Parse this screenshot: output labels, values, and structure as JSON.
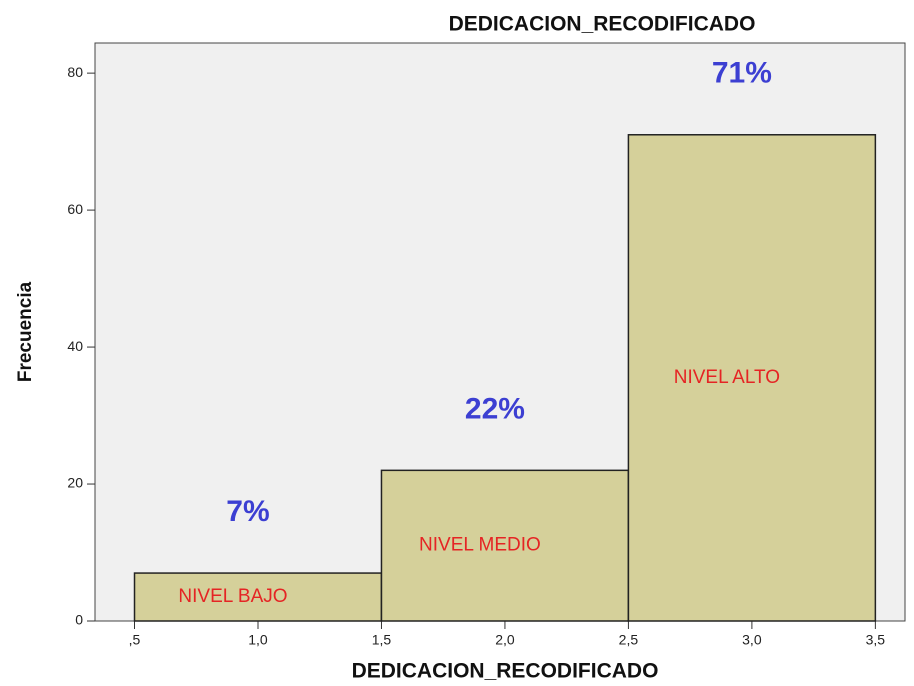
{
  "chart_data": {
    "type": "histogram",
    "title": "DEDICACION_RECODIFICADO",
    "x_label": "DEDICACION_RECODIFICADO",
    "y_label": "Frecuencia",
    "bins": [
      0.5,
      1.5,
      2.5,
      3.5
    ],
    "values": [
      7,
      22,
      71
    ],
    "value_labels": [
      "7%",
      "22%",
      "71%"
    ],
    "bar_labels": [
      "NIVEL BAJO",
      "NIVEL MEDIO",
      "NIVEL ALTO"
    ],
    "color": "#d5d09a",
    "background": "#f0f0f0",
    "xlim": [
      0.34,
      3.62
    ],
    "xticks": [
      {
        "value": 0.5,
        "label": ",5"
      },
      {
        "value": 1.0,
        "label": "1,0"
      },
      {
        "value": 1.5,
        "label": "1,5"
      },
      {
        "value": 2.0,
        "label": "2,0"
      },
      {
        "value": 2.5,
        "label": "2,5"
      },
      {
        "value": 3.0,
        "label": "3,0"
      },
      {
        "value": 3.5,
        "label": "3,5"
      }
    ],
    "ylim": [
      0,
      84.4
    ],
    "yticks": [
      0,
      20,
      40,
      60,
      80
    ]
  }
}
